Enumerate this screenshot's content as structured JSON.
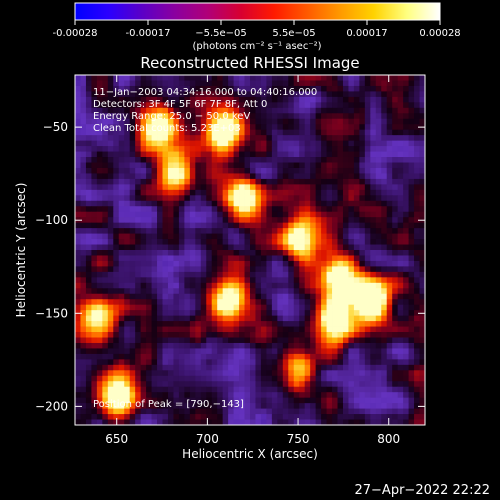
{
  "colorbar": {
    "ticks": [
      "-0.00028",
      "-0.00017",
      "−5.5e−05",
      "5.5e−05",
      "0.00017",
      "0.00028"
    ],
    "units": "(photons cm⁻² s⁻¹ asec⁻²)",
    "colors": [
      "#0000ff",
      "#2a00ff",
      "#5a00c8",
      "#8a00a0",
      "#b00078",
      "#d80030",
      "#ff1a00",
      "#ff5a00",
      "#ff9a00",
      "#ffd200",
      "#ffff80",
      "#ffffff"
    ]
  },
  "chart_data": {
    "type": "heatmap",
    "title": "Reconstructed RHESSI Image",
    "xlabel": "Heliocentric X (arcsec)",
    "ylabel": "Heliocentric Y (arcsec)",
    "x_ticks": [
      650,
      700,
      750,
      800
    ],
    "y_ticks": [
      -50,
      -100,
      -150,
      -200
    ],
    "xlim": [
      627,
      820
    ],
    "ylim": [
      -210,
      -22
    ],
    "color_range": [
      -0.00028,
      0.00028
    ],
    "peak": [
      790,
      -143
    ],
    "bright_regions": [
      {
        "x": 672,
        "y": -50,
        "level": 0.85
      },
      {
        "x": 682,
        "y": -75,
        "level": 0.95
      },
      {
        "x": 710,
        "y": -52,
        "level": 1.0
      },
      {
        "x": 720,
        "y": -90,
        "level": 0.85
      },
      {
        "x": 752,
        "y": -110,
        "level": 0.9
      },
      {
        "x": 772,
        "y": -130,
        "level": 0.95
      },
      {
        "x": 790,
        "y": -143,
        "level": 1.0
      },
      {
        "x": 770,
        "y": -155,
        "level": 0.95
      },
      {
        "x": 712,
        "y": -143,
        "level": 0.9
      },
      {
        "x": 640,
        "y": -155,
        "level": 0.8
      },
      {
        "x": 650,
        "y": -195,
        "level": 0.85
      },
      {
        "x": 750,
        "y": -180,
        "level": 0.75
      }
    ]
  },
  "annotations": {
    "time_range": "11−Jan−2003 04:34:16.000 to 04:40:16.000",
    "detectors": "Detectors: 3F 4F 5F 6F 7F 8F, Att 0",
    "energy": "Energy Range: 25.0 − 50.0 keV",
    "clean": "Clean     Total counts: 5.23E+03",
    "peak": "Position of Peak = [790,−143]"
  },
  "footer": {
    "date": "27−Apr−2022 22:22"
  }
}
